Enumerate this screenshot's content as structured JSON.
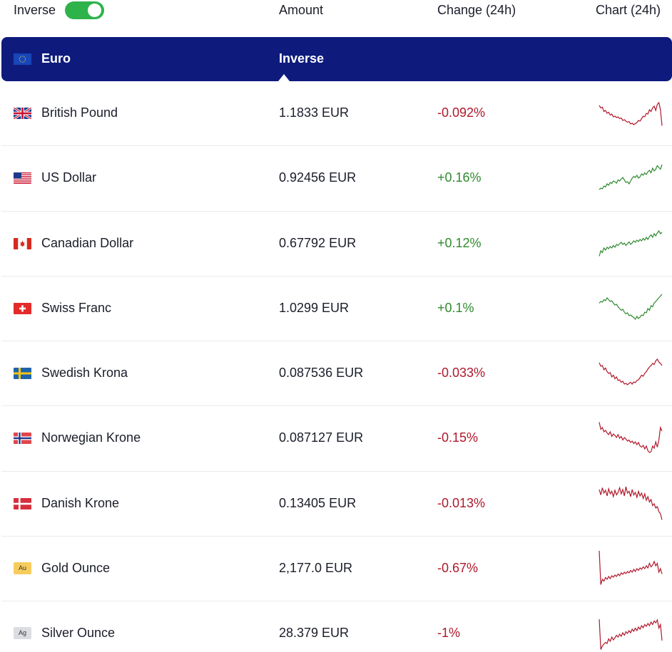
{
  "header": {
    "inverse_label": "Inverse",
    "inverse_enabled": true,
    "amount_label": "Amount",
    "change_label": "Change (24h)",
    "chart_label": "Chart (24h)"
  },
  "base": {
    "name": "Euro",
    "mode_label": "Inverse",
    "flag_icon": "eu-flag-icon"
  },
  "colors": {
    "accent_bar": "#0e1b7d",
    "toggle_on": "#2db34a",
    "negative": "#b0182b",
    "positive": "#2f8a2f"
  },
  "rows": [
    {
      "name": "British Pound",
      "amount": "1.1833 EUR",
      "change": "-0.092%",
      "direction": "down",
      "flag": "gb-flag-icon",
      "spark": [
        0.28,
        0.35,
        0.33,
        0.45,
        0.42,
        0.5,
        0.47,
        0.55,
        0.52,
        0.6,
        0.58,
        0.62,
        0.6,
        0.65,
        0.63,
        0.7,
        0.68,
        0.72,
        0.75,
        0.73,
        0.8,
        0.78,
        0.82,
        0.79,
        0.76,
        0.7,
        0.72,
        0.65,
        0.58,
        0.6,
        0.5,
        0.52,
        0.4,
        0.45,
        0.35,
        0.3,
        0.42,
        0.25,
        0.2,
        0.4,
        0.85
      ]
    },
    {
      "name": "US Dollar",
      "amount": "0.92456 EUR",
      "change": "+0.16%",
      "direction": "up",
      "flag": "us-flag-icon",
      "spark": [
        0.82,
        0.78,
        0.8,
        0.72,
        0.75,
        0.66,
        0.7,
        0.62,
        0.65,
        0.58,
        0.6,
        0.64,
        0.55,
        0.58,
        0.52,
        0.48,
        0.55,
        0.62,
        0.6,
        0.66,
        0.58,
        0.5,
        0.45,
        0.48,
        0.42,
        0.5,
        0.46,
        0.38,
        0.42,
        0.35,
        0.4,
        0.32,
        0.28,
        0.35,
        0.22,
        0.3,
        0.25,
        0.15,
        0.2,
        0.25,
        0.12
      ]
    },
    {
      "name": "Canadian Dollar",
      "amount": "0.67792 EUR",
      "change": "+0.12%",
      "direction": "up",
      "flag": "ca-flag-icon",
      "spark": [
        0.85,
        0.7,
        0.75,
        0.62,
        0.68,
        0.6,
        0.64,
        0.58,
        0.62,
        0.55,
        0.6,
        0.52,
        0.55,
        0.5,
        0.46,
        0.52,
        0.48,
        0.55,
        0.5,
        0.45,
        0.52,
        0.48,
        0.42,
        0.46,
        0.4,
        0.44,
        0.38,
        0.42,
        0.35,
        0.4,
        0.32,
        0.38,
        0.3,
        0.25,
        0.32,
        0.22,
        0.28,
        0.2,
        0.14,
        0.22,
        0.18
      ]
    },
    {
      "name": "Swiss Franc",
      "amount": "1.0299 EUR",
      "change": "+0.1%",
      "direction": "up",
      "flag": "ch-flag-icon",
      "spark": [
        0.35,
        0.3,
        0.32,
        0.25,
        0.28,
        0.2,
        0.25,
        0.3,
        0.28,
        0.35,
        0.4,
        0.38,
        0.45,
        0.5,
        0.55,
        0.52,
        0.6,
        0.65,
        0.62,
        0.7,
        0.68,
        0.72,
        0.75,
        0.8,
        0.72,
        0.78,
        0.74,
        0.68,
        0.7,
        0.6,
        0.62,
        0.5,
        0.55,
        0.42,
        0.45,
        0.35,
        0.3,
        0.25,
        0.2,
        0.15,
        0.1
      ]
    },
    {
      "name": "Swedish Krona",
      "amount": "0.087536 EUR",
      "change": "-0.033%",
      "direction": "down",
      "flag": "se-flag-icon",
      "spark": [
        0.2,
        0.3,
        0.28,
        0.4,
        0.35,
        0.45,
        0.5,
        0.48,
        0.6,
        0.55,
        0.65,
        0.6,
        0.7,
        0.68,
        0.75,
        0.72,
        0.8,
        0.78,
        0.82,
        0.78,
        0.75,
        0.8,
        0.74,
        0.76,
        0.7,
        0.68,
        0.62,
        0.55,
        0.58,
        0.5,
        0.45,
        0.38,
        0.32,
        0.28,
        0.22,
        0.25,
        0.15,
        0.1,
        0.18,
        0.22,
        0.28
      ]
    },
    {
      "name": "Norwegian Krone",
      "amount": "0.087127 EUR",
      "change": "-0.15%",
      "direction": "down",
      "flag": "no-flag-icon",
      "spark": [
        0.05,
        0.25,
        0.2,
        0.32,
        0.28,
        0.35,
        0.4,
        0.32,
        0.45,
        0.38,
        0.42,
        0.48,
        0.4,
        0.5,
        0.45,
        0.55,
        0.48,
        0.52,
        0.58,
        0.55,
        0.62,
        0.58,
        0.65,
        0.6,
        0.68,
        0.62,
        0.72,
        0.75,
        0.7,
        0.8,
        0.72,
        0.85,
        0.9,
        0.88,
        0.72,
        0.78,
        0.6,
        0.75,
        0.55,
        0.2,
        0.3
      ]
    },
    {
      "name": "Danish Krone",
      "amount": "0.13405 EUR",
      "change": "-0.013%",
      "direction": "down",
      "flag": "dk-flag-icon",
      "spark": [
        0.1,
        0.25,
        0.05,
        0.2,
        0.12,
        0.28,
        0.08,
        0.22,
        0.15,
        0.3,
        0.12,
        0.25,
        0.18,
        0.05,
        0.22,
        0.1,
        0.28,
        0.02,
        0.2,
        0.15,
        0.3,
        0.1,
        0.25,
        0.18,
        0.32,
        0.15,
        0.28,
        0.2,
        0.35,
        0.22,
        0.4,
        0.3,
        0.45,
        0.38,
        0.55,
        0.5,
        0.62,
        0.58,
        0.72,
        0.78,
        0.95
      ]
    },
    {
      "name": "Gold Ounce",
      "amount": "2,177.0 EUR",
      "change": "-0.67%",
      "direction": "down",
      "flag": "gold-icon",
      "flag_text": "Au",
      "spark": [
        0.0,
        0.95,
        0.8,
        0.85,
        0.75,
        0.8,
        0.72,
        0.78,
        0.7,
        0.74,
        0.68,
        0.72,
        0.65,
        0.7,
        0.62,
        0.66,
        0.6,
        0.64,
        0.58,
        0.62,
        0.55,
        0.6,
        0.52,
        0.58,
        0.5,
        0.55,
        0.48,
        0.52,
        0.45,
        0.5,
        0.42,
        0.48,
        0.35,
        0.45,
        0.4,
        0.3,
        0.42,
        0.35,
        0.6,
        0.5,
        0.65
      ]
    },
    {
      "name": "Silver Ounce",
      "amount": "28.379 EUR",
      "change": "-1%",
      "direction": "down",
      "flag": "silver-icon",
      "flag_text": "Ag",
      "spark": [
        0.1,
        0.95,
        0.85,
        0.8,
        0.75,
        0.78,
        0.65,
        0.72,
        0.6,
        0.68,
        0.62,
        0.55,
        0.6,
        0.52,
        0.58,
        0.48,
        0.55,
        0.45,
        0.5,
        0.42,
        0.48,
        0.38,
        0.44,
        0.35,
        0.42,
        0.32,
        0.38,
        0.28,
        0.34,
        0.25,
        0.3,
        0.22,
        0.28,
        0.18,
        0.25,
        0.15,
        0.2,
        0.12,
        0.35,
        0.25,
        0.7
      ]
    }
  ]
}
